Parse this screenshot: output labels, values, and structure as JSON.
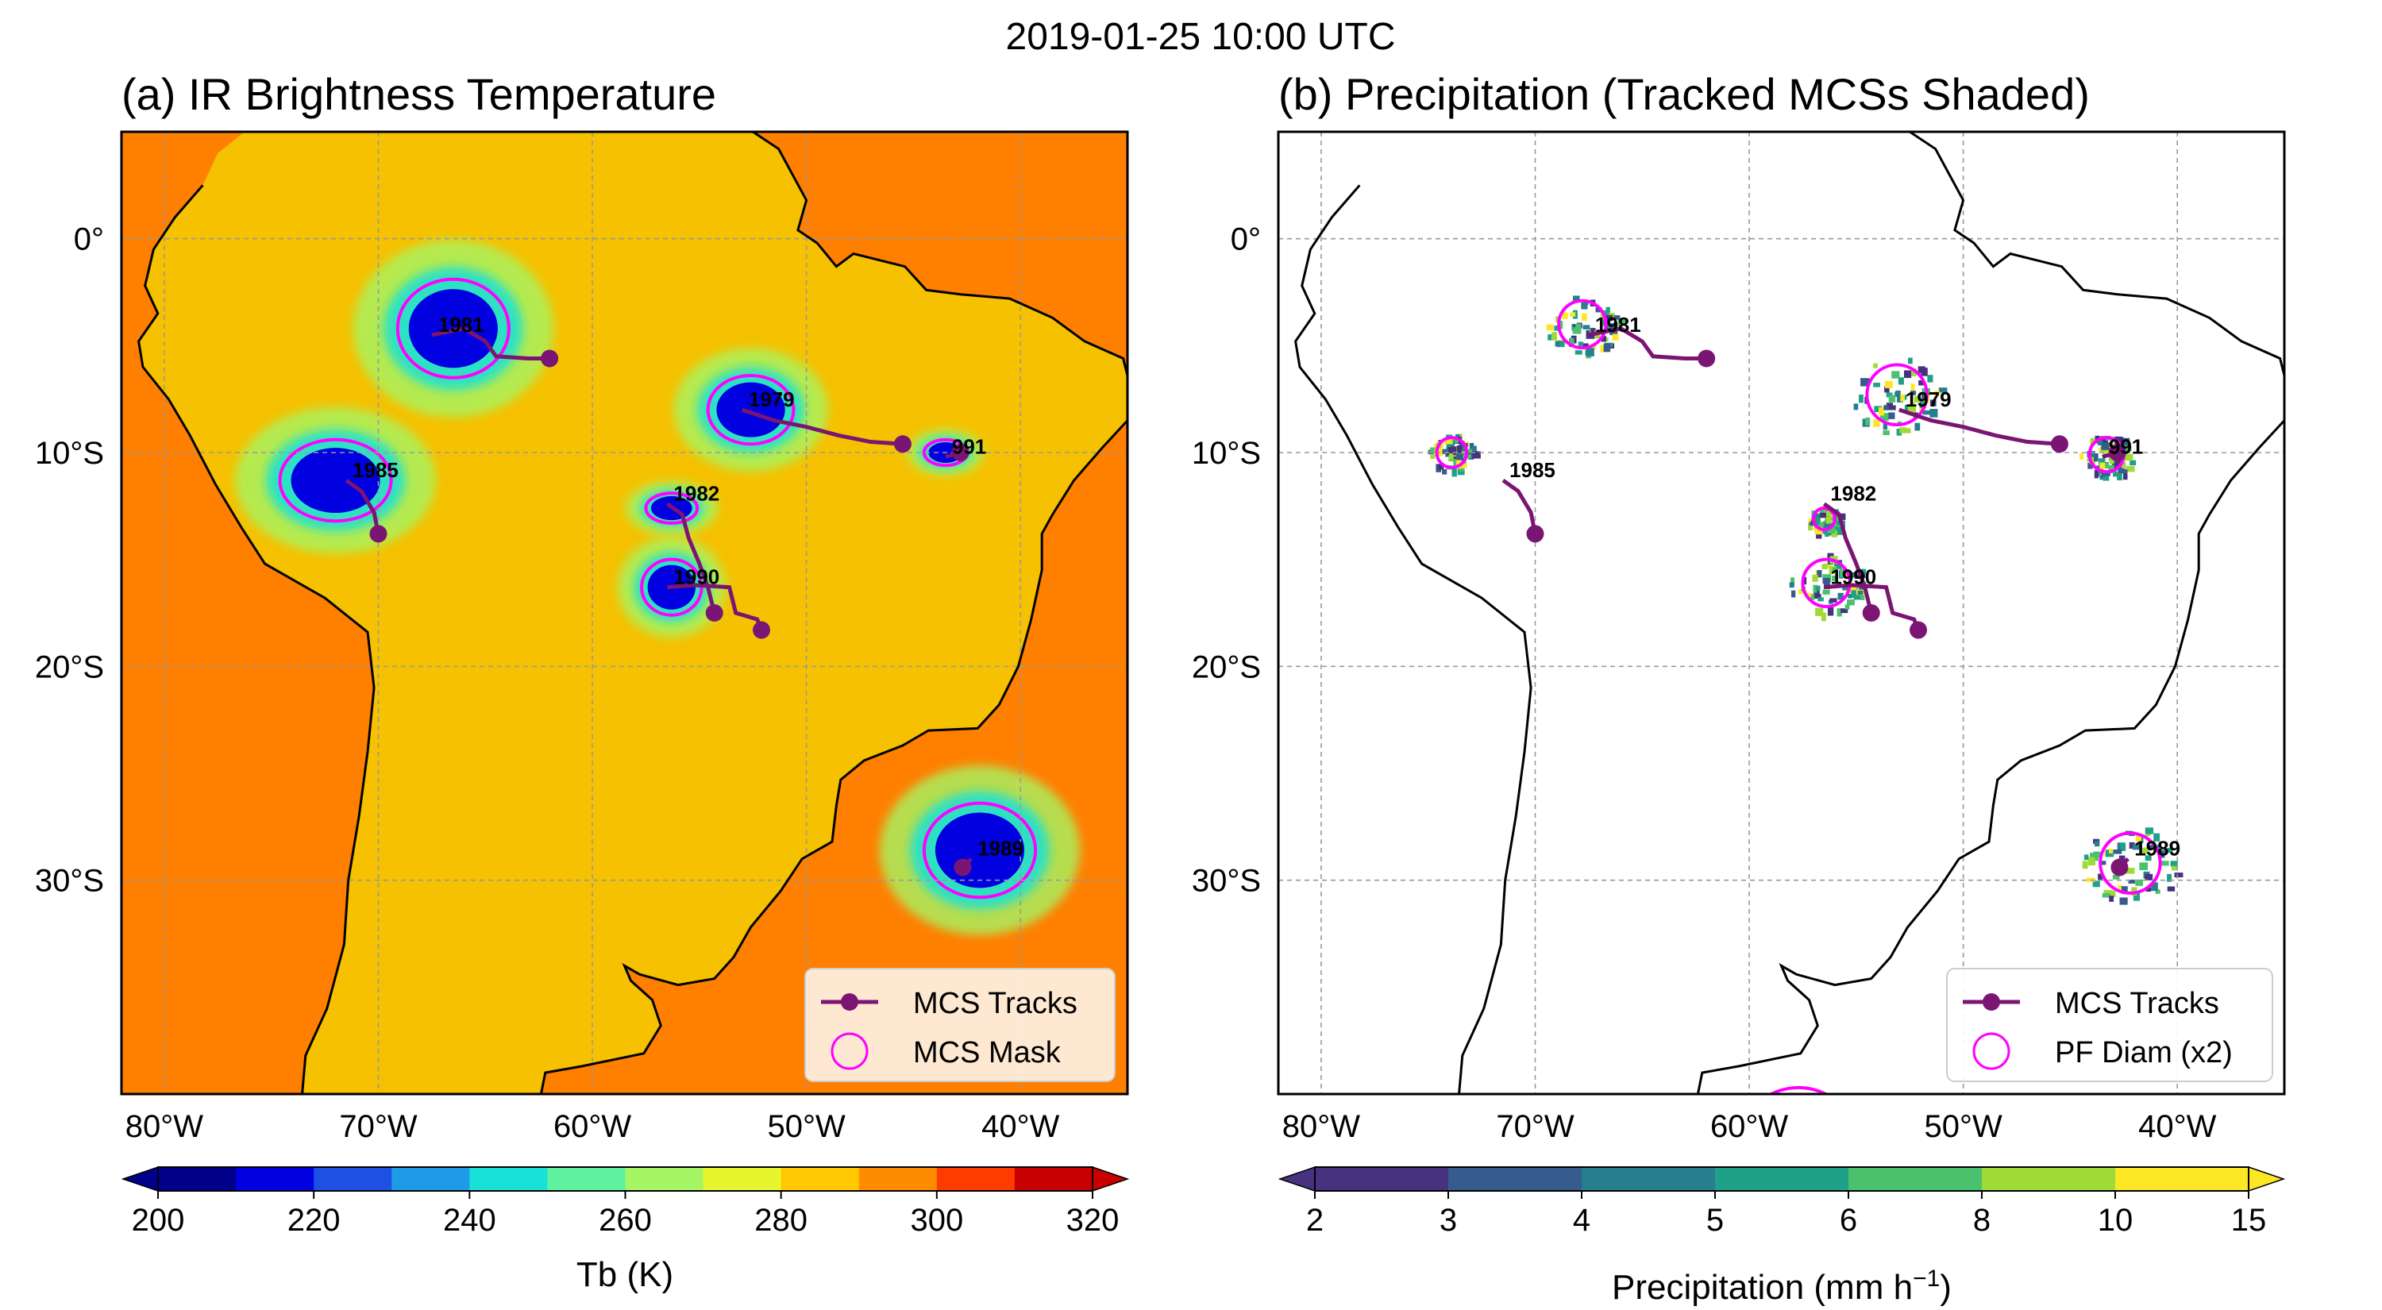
{
  "figure": {
    "title": "2019-01-25 10:00 UTC"
  },
  "panels": [
    {
      "title": "(a) IR Brightness Temperature",
      "legend": [
        "MCS Tracks",
        "MCS Mask"
      ],
      "colorbar": {
        "label": "Tb (K)",
        "ticks": [
          "200",
          "220",
          "240",
          "260",
          "280",
          "300",
          "320"
        ],
        "colors": [
          "#00008b",
          "#0000e0",
          "#1e50e6",
          "#1e9be6",
          "#19e1d7",
          "#5ff0a0",
          "#a5f564",
          "#e6f52d",
          "#ffc800",
          "#ff8c00",
          "#ff3c00",
          "#c80000"
        ]
      },
      "land_color": "#f5c100",
      "ocean_color": "#ff7f00"
    },
    {
      "title": "(b) Precipitation (Tracked MCSs Shaded)",
      "legend": [
        "MCS Tracks",
        "PF Diam (x2)"
      ],
      "colorbar": {
        "label": "Precipitation (mm h",
        "label_sup": "−1",
        "label_end": ")",
        "ticks": [
          "2",
          "3",
          "4",
          "5",
          "6",
          "8",
          "10",
          "15"
        ],
        "colors": [
          "#46327e",
          "#365c8d",
          "#277f8e",
          "#1fa187",
          "#4ac16d",
          "#a0da39",
          "#fde725"
        ]
      }
    }
  ],
  "axes": {
    "lat_ticks": [
      "0°",
      "10°S",
      "20°S",
      "30°S"
    ],
    "lon_ticks": [
      "80°W",
      "70°W",
      "60°W",
      "50°W",
      "40°W"
    ]
  },
  "tracks": [
    {
      "id": "1981",
      "lonlat": [
        [
          -67.5,
          -4.5
        ],
        [
          -66,
          -4.2
        ],
        [
          -65,
          -4.8
        ],
        [
          -64.5,
          -5.5
        ],
        [
          -63,
          -5.6
        ],
        [
          -62,
          -5.6
        ]
      ]
    },
    {
      "id": "1979",
      "lonlat": [
        [
          -53,
          -8.0
        ],
        [
          -51.5,
          -8.5
        ],
        [
          -50,
          -8.8
        ],
        [
          -48.5,
          -9.2
        ],
        [
          -47,
          -9.5
        ],
        [
          -45.5,
          -9.6
        ]
      ]
    },
    {
      "id": "991",
      "lonlat": [
        [
          -43.5,
          -10.2
        ],
        [
          -42.8,
          -10.0
        ]
      ]
    },
    {
      "id": "1985",
      "lonlat": [
        [
          -71.5,
          -11.3
        ],
        [
          -70.8,
          -11.8
        ],
        [
          -70.2,
          -12.8
        ],
        [
          -70.0,
          -13.8
        ]
      ]
    },
    {
      "id": "1982",
      "lonlat": [
        [
          -56.5,
          -12.4
        ],
        [
          -55.8,
          -12.9
        ],
        [
          -55.5,
          -14.0
        ],
        [
          -55.0,
          -15.2
        ],
        [
          -54.6,
          -16.3
        ],
        [
          -54.3,
          -17.5
        ]
      ]
    },
    {
      "id": "1990",
      "lonlat": [
        [
          -56.5,
          -16.3
        ],
        [
          -55.2,
          -16.2
        ],
        [
          -53.6,
          -16.3
        ],
        [
          -53.3,
          -17.5
        ],
        [
          -52.3,
          -17.8
        ],
        [
          -52.1,
          -18.3
        ]
      ]
    },
    {
      "id": "1989",
      "lonlat": [
        [
          -42.3,
          -29.0
        ],
        [
          -42.7,
          -29.4
        ]
      ]
    }
  ],
  "pf_circles_b": [
    {
      "id": "1981",
      "lon": -67.8,
      "lat": -4.0,
      "r_deg": 1.1
    },
    {
      "id": "1979",
      "lon": -53.1,
      "lat": -7.3,
      "r_deg": 1.4
    },
    {
      "id": "991",
      "lon": -43.3,
      "lat": -10.1,
      "r_deg": 0.8
    },
    {
      "id": "1985",
      "lon": -73.9,
      "lat": -10.0,
      "r_deg": 0.7
    },
    {
      "id": "1982",
      "lon": -56.5,
      "lat": -13.1,
      "r_deg": 0.5
    },
    {
      "id": "1990",
      "lon": -56.4,
      "lat": -16.1,
      "r_deg": 1.1
    },
    {
      "id": "1989",
      "lon": -42.2,
      "lat": -29.2,
      "r_deg": 1.4
    },
    {
      "id": "coast",
      "lon": -57.7,
      "lat": -42.5,
      "r_deg": 2.8
    }
  ],
  "mcs_masks_a": [
    {
      "id": "1981",
      "lon": -66.5,
      "lat": -4.2,
      "rx": 2.6,
      "ry": 2.3
    },
    {
      "id": "1979",
      "lon": -52.6,
      "lat": -8.0,
      "rx": 2.0,
      "ry": 1.6
    },
    {
      "id": "991",
      "lon": -43.5,
      "lat": -10.0,
      "rx": 1.0,
      "ry": 0.6
    },
    {
      "id": "1985",
      "lon": -72.0,
      "lat": -11.3,
      "rx": 2.6,
      "ry": 1.9
    },
    {
      "id": "1982",
      "lon": -56.3,
      "lat": -12.6,
      "rx": 1.2,
      "ry": 0.7
    },
    {
      "id": "1990",
      "lon": -56.3,
      "lat": -16.3,
      "rx": 1.4,
      "ry": 1.3
    },
    {
      "id": "1989",
      "lon": -41.9,
      "lat": -28.6,
      "rx": 2.6,
      "ry": 2.2
    }
  ]
}
